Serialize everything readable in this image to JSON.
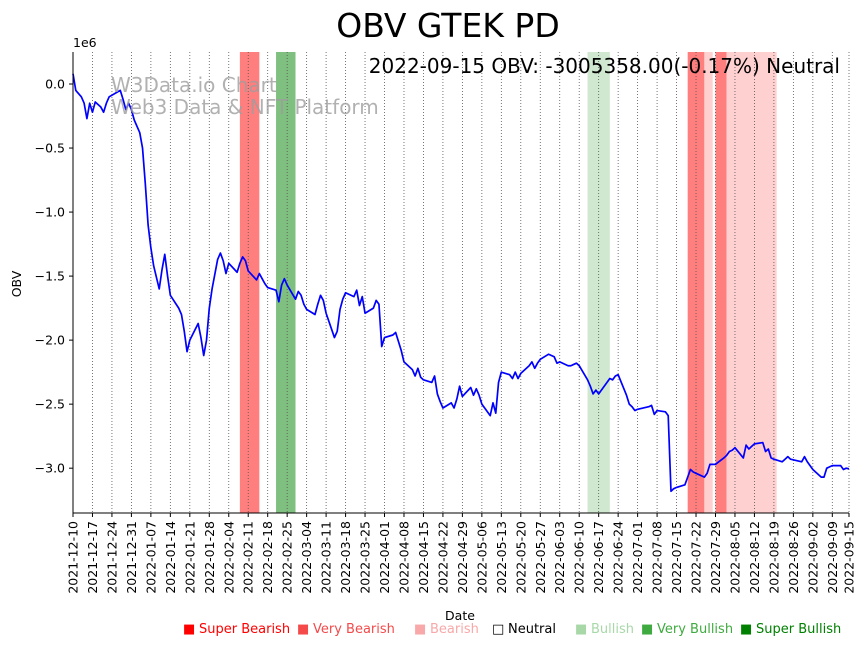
{
  "chart_data": {
    "type": "line",
    "title": "OBV GTEK PD",
    "annotation": "2022-09-15 OBV: -3005358.00(-0.17%) Neutral",
    "watermark_line1": "W3Data.io Chart",
    "watermark_line2": "Web3 Data & NFT Platform",
    "xlabel": "Date",
    "ylabel": "OBV",
    "y_multiplier_label": "1e6",
    "ylim": [
      -3.35,
      0.25
    ],
    "xlim": [
      "2021-12-10",
      "2022-09-15"
    ],
    "y_ticks": [
      {
        "value": 0.0,
        "label": "0.0"
      },
      {
        "value": -0.5,
        "label": "−0.5"
      },
      {
        "value": -1.0,
        "label": "−1.0"
      },
      {
        "value": -1.5,
        "label": "−1.5"
      },
      {
        "value": -2.0,
        "label": "−2.0"
      },
      {
        "value": -2.5,
        "label": "−2.5"
      },
      {
        "value": -3.0,
        "label": "−3.0"
      }
    ],
    "x_ticks": [
      "2021-12-10",
      "2021-12-17",
      "2021-12-24",
      "2021-12-31",
      "2022-01-07",
      "2022-01-14",
      "2022-01-21",
      "2022-01-28",
      "2022-02-04",
      "2022-02-11",
      "2022-02-18",
      "2022-02-25",
      "2022-03-04",
      "2022-03-11",
      "2022-03-18",
      "2022-03-25",
      "2022-04-01",
      "2022-04-08",
      "2022-04-15",
      "2022-04-22",
      "2022-04-29",
      "2022-05-06",
      "2022-05-13",
      "2022-05-20",
      "2022-05-27",
      "2022-06-03",
      "2022-06-10",
      "2022-06-17",
      "2022-06-24",
      "2022-07-01",
      "2022-07-08",
      "2022-07-15",
      "2022-07-22",
      "2022-07-29",
      "2022-08-05",
      "2022-08-12",
      "2022-08-19",
      "2022-08-26",
      "2022-09-02",
      "2022-09-09",
      "2022-09-15"
    ],
    "bands": [
      {
        "start": "2022-02-08",
        "end": "2022-02-15",
        "signal": "very-bearish"
      },
      {
        "start": "2022-02-21",
        "end": "2022-02-28",
        "signal": "very-bullish"
      },
      {
        "start": "2022-06-13",
        "end": "2022-06-21",
        "signal": "bullish"
      },
      {
        "start": "2022-07-19",
        "end": "2022-07-25",
        "signal": "very-bearish"
      },
      {
        "start": "2022-07-25",
        "end": "2022-07-28",
        "signal": "bearish"
      },
      {
        "start": "2022-07-29",
        "end": "2022-08-02",
        "signal": "very-bearish"
      },
      {
        "start": "2022-08-02",
        "end": "2022-08-20",
        "signal": "bearish"
      }
    ],
    "series": [
      {
        "name": "OBV",
        "color": "#0000ff",
        "points": [
          [
            "2021-12-10",
            0.08
          ],
          [
            "2021-12-11",
            -0.05
          ],
          [
            "2021-12-13",
            -0.1
          ],
          [
            "2021-12-14",
            -0.15
          ],
          [
            "2021-12-15",
            -0.27
          ],
          [
            "2021-12-16",
            -0.15
          ],
          [
            "2021-12-17",
            -0.22
          ],
          [
            "2021-12-18",
            -0.14
          ],
          [
            "2021-12-20",
            -0.18
          ],
          [
            "2021-12-21",
            -0.22
          ],
          [
            "2021-12-22",
            -0.15
          ],
          [
            "2021-12-23",
            -0.1
          ],
          [
            "2021-12-27",
            -0.05
          ],
          [
            "2021-12-28",
            -0.12
          ],
          [
            "2021-12-29",
            -0.2
          ],
          [
            "2021-12-30",
            -0.15
          ],
          [
            "2021-12-31",
            -0.2
          ],
          [
            "2022-01-01",
            -0.28
          ],
          [
            "2022-01-03",
            -0.38
          ],
          [
            "2022-01-04",
            -0.5
          ],
          [
            "2022-01-05",
            -0.78
          ],
          [
            "2022-01-06",
            -1.1
          ],
          [
            "2022-01-07",
            -1.28
          ],
          [
            "2022-01-08",
            -1.42
          ],
          [
            "2022-01-10",
            -1.6
          ],
          [
            "2022-01-11",
            -1.45
          ],
          [
            "2022-01-12",
            -1.33
          ],
          [
            "2022-01-13",
            -1.5
          ],
          [
            "2022-01-14",
            -1.65
          ],
          [
            "2022-01-17",
            -1.75
          ],
          [
            "2022-01-18",
            -1.8
          ],
          [
            "2022-01-19",
            -1.93
          ],
          [
            "2022-01-20",
            -2.09
          ],
          [
            "2022-01-21",
            -2.0
          ],
          [
            "2022-01-24",
            -1.87
          ],
          [
            "2022-01-25",
            -1.98
          ],
          [
            "2022-01-26",
            -2.12
          ],
          [
            "2022-01-27",
            -2.0
          ],
          [
            "2022-01-28",
            -1.75
          ],
          [
            "2022-01-29",
            -1.6
          ],
          [
            "2022-01-31",
            -1.37
          ],
          [
            "2022-02-01",
            -1.32
          ],
          [
            "2022-02-02",
            -1.38
          ],
          [
            "2022-02-03",
            -1.48
          ],
          [
            "2022-02-04",
            -1.4
          ],
          [
            "2022-02-07",
            -1.47
          ],
          [
            "2022-02-08",
            -1.4
          ],
          [
            "2022-02-09",
            -1.35
          ],
          [
            "2022-02-10",
            -1.38
          ],
          [
            "2022-02-11",
            -1.46
          ],
          [
            "2022-02-14",
            -1.53
          ],
          [
            "2022-02-15",
            -1.48
          ],
          [
            "2022-02-16",
            -1.52
          ],
          [
            "2022-02-17",
            -1.56
          ],
          [
            "2022-02-18",
            -1.59
          ],
          [
            "2022-02-21",
            -1.61
          ],
          [
            "2022-02-22",
            -1.7
          ],
          [
            "2022-02-23",
            -1.57
          ],
          [
            "2022-02-24",
            -1.52
          ],
          [
            "2022-02-25",
            -1.57
          ],
          [
            "2022-02-28",
            -1.68
          ],
          [
            "2022-03-01",
            -1.62
          ],
          [
            "2022-03-02",
            -1.65
          ],
          [
            "2022-03-03",
            -1.72
          ],
          [
            "2022-03-04",
            -1.76
          ],
          [
            "2022-03-07",
            -1.8
          ],
          [
            "2022-03-08",
            -1.72
          ],
          [
            "2022-03-09",
            -1.65
          ],
          [
            "2022-03-10",
            -1.69
          ],
          [
            "2022-03-11",
            -1.79
          ],
          [
            "2022-03-14",
            -1.98
          ],
          [
            "2022-03-15",
            -1.93
          ],
          [
            "2022-03-16",
            -1.76
          ],
          [
            "2022-03-17",
            -1.68
          ],
          [
            "2022-03-18",
            -1.63
          ],
          [
            "2022-03-21",
            -1.66
          ],
          [
            "2022-03-22",
            -1.61
          ],
          [
            "2022-03-23",
            -1.73
          ],
          [
            "2022-03-24",
            -1.66
          ],
          [
            "2022-03-25",
            -1.79
          ],
          [
            "2022-03-28",
            -1.75
          ],
          [
            "2022-03-29",
            -1.69
          ],
          [
            "2022-03-30",
            -1.72
          ],
          [
            "2022-03-31",
            -2.05
          ],
          [
            "2022-04-01",
            -1.98
          ],
          [
            "2022-04-04",
            -1.96
          ],
          [
            "2022-04-05",
            -1.94
          ],
          [
            "2022-04-06",
            -2.01
          ],
          [
            "2022-04-07",
            -2.08
          ],
          [
            "2022-04-08",
            -2.17
          ],
          [
            "2022-04-11",
            -2.23
          ],
          [
            "2022-04-12",
            -2.28
          ],
          [
            "2022-04-13",
            -2.22
          ],
          [
            "2022-04-14",
            -2.29
          ],
          [
            "2022-04-15",
            -2.31
          ],
          [
            "2022-04-18",
            -2.33
          ],
          [
            "2022-04-19",
            -2.28
          ],
          [
            "2022-04-20",
            -2.42
          ],
          [
            "2022-04-21",
            -2.48
          ],
          [
            "2022-04-22",
            -2.53
          ],
          [
            "2022-04-25",
            -2.49
          ],
          [
            "2022-04-26",
            -2.53
          ],
          [
            "2022-04-27",
            -2.46
          ],
          [
            "2022-04-28",
            -2.36
          ],
          [
            "2022-04-29",
            -2.44
          ],
          [
            "2022-05-02",
            -2.37
          ],
          [
            "2022-05-03",
            -2.43
          ],
          [
            "2022-05-04",
            -2.38
          ],
          [
            "2022-05-05",
            -2.43
          ],
          [
            "2022-05-06",
            -2.5
          ],
          [
            "2022-05-09",
            -2.59
          ],
          [
            "2022-05-10",
            -2.49
          ],
          [
            "2022-05-11",
            -2.57
          ],
          [
            "2022-05-12",
            -2.33
          ],
          [
            "2022-05-13",
            -2.25
          ],
          [
            "2022-05-16",
            -2.27
          ],
          [
            "2022-05-17",
            -2.3
          ],
          [
            "2022-05-18",
            -2.25
          ],
          [
            "2022-05-19",
            -2.3
          ],
          [
            "2022-05-20",
            -2.26
          ],
          [
            "2022-05-23",
            -2.2
          ],
          [
            "2022-05-24",
            -2.17
          ],
          [
            "2022-05-25",
            -2.22
          ],
          [
            "2022-05-26",
            -2.18
          ],
          [
            "2022-05-27",
            -2.15
          ],
          [
            "2022-05-30",
            -2.11
          ],
          [
            "2022-05-31",
            -2.12
          ],
          [
            "2022-06-01",
            -2.13
          ],
          [
            "2022-06-02",
            -2.18
          ],
          [
            "2022-06-03",
            -2.17
          ],
          [
            "2022-06-06",
            -2.2
          ],
          [
            "2022-06-07",
            -2.2
          ],
          [
            "2022-06-08",
            -2.19
          ],
          [
            "2022-06-09",
            -2.18
          ],
          [
            "2022-06-10",
            -2.2
          ],
          [
            "2022-06-13",
            -2.31
          ],
          [
            "2022-06-14",
            -2.36
          ],
          [
            "2022-06-15",
            -2.42
          ],
          [
            "2022-06-16",
            -2.39
          ],
          [
            "2022-06-17",
            -2.42
          ],
          [
            "2022-06-20",
            -2.33
          ],
          [
            "2022-06-21",
            -2.3
          ],
          [
            "2022-06-22",
            -2.31
          ],
          [
            "2022-06-23",
            -2.28
          ],
          [
            "2022-06-24",
            -2.27
          ],
          [
            "2022-06-27",
            -2.43
          ],
          [
            "2022-06-28",
            -2.5
          ],
          [
            "2022-06-29",
            -2.52
          ],
          [
            "2022-06-30",
            -2.55
          ],
          [
            "2022-07-01",
            -2.54
          ],
          [
            "2022-07-05",
            -2.52
          ],
          [
            "2022-07-06",
            -2.51
          ],
          [
            "2022-07-07",
            -2.58
          ],
          [
            "2022-07-08",
            -2.55
          ],
          [
            "2022-07-11",
            -2.56
          ],
          [
            "2022-07-12",
            -2.59
          ],
          [
            "2022-07-13",
            -3.18
          ],
          [
            "2022-07-14",
            -3.16
          ],
          [
            "2022-07-15",
            -3.15
          ],
          [
            "2022-07-18",
            -3.13
          ],
          [
            "2022-07-19",
            -3.07
          ],
          [
            "2022-07-20",
            -3.01
          ],
          [
            "2022-07-21",
            -3.03
          ],
          [
            "2022-07-22",
            -3.04
          ],
          [
            "2022-07-25",
            -3.07
          ],
          [
            "2022-07-26",
            -3.04
          ],
          [
            "2022-07-27",
            -2.97
          ],
          [
            "2022-07-28",
            -2.97
          ],
          [
            "2022-07-29",
            -2.97
          ],
          [
            "2022-08-01",
            -2.92
          ],
          [
            "2022-08-02",
            -2.9
          ],
          [
            "2022-08-03",
            -2.87
          ],
          [
            "2022-08-04",
            -2.86
          ],
          [
            "2022-08-05",
            -2.84
          ],
          [
            "2022-08-08",
            -2.92
          ],
          [
            "2022-08-09",
            -2.82
          ],
          [
            "2022-08-10",
            -2.85
          ],
          [
            "2022-08-11",
            -2.83
          ],
          [
            "2022-08-12",
            -2.81
          ],
          [
            "2022-08-15",
            -2.8
          ],
          [
            "2022-08-16",
            -2.87
          ],
          [
            "2022-08-17",
            -2.85
          ],
          [
            "2022-08-18",
            -2.92
          ],
          [
            "2022-08-19",
            -2.93
          ],
          [
            "2022-08-22",
            -2.95
          ],
          [
            "2022-08-23",
            -2.93
          ],
          [
            "2022-08-24",
            -2.91
          ],
          [
            "2022-08-25",
            -2.93
          ],
          [
            "2022-08-29",
            -2.95
          ],
          [
            "2022-08-30",
            -2.91
          ],
          [
            "2022-08-31",
            -2.95
          ],
          [
            "2022-09-01",
            -2.98
          ],
          [
            "2022-09-02",
            -3.01
          ],
          [
            "2022-09-05",
            -3.07
          ],
          [
            "2022-09-06",
            -3.07
          ],
          [
            "2022-09-07",
            -3.0
          ],
          [
            "2022-09-08",
            -2.99
          ],
          [
            "2022-09-09",
            -2.98
          ],
          [
            "2022-09-12",
            -2.98
          ],
          [
            "2022-09-13",
            -3.01
          ],
          [
            "2022-09-14",
            -3.0
          ],
          [
            "2022-09-15",
            -3.005358
          ]
        ]
      }
    ],
    "legend": [
      {
        "label": "Super Bearish",
        "color": "#ff0000",
        "marker": "■",
        "text_color": "#ff0000"
      },
      {
        "label": "Very Bearish",
        "color": "#f44a4a",
        "marker": "■",
        "text_color": "#f44a4a"
      },
      {
        "label": "Bearish",
        "color": "#f8a8a8",
        "marker": "■",
        "text_color": "#f8a8a8"
      },
      {
        "label": "Neutral",
        "color": "#000000",
        "marker": "□",
        "text_color": "#000000"
      },
      {
        "label": "Bullish",
        "color": "#a8d8a8",
        "marker": "■",
        "text_color": "#a8d8a8"
      },
      {
        "label": "Very Bullish",
        "color": "#3faa3f",
        "marker": "■",
        "text_color": "#3faa3f"
      },
      {
        "label": "Super Bullish",
        "color": "#008000",
        "marker": "■",
        "text_color": "#008000"
      }
    ],
    "band_colors": {
      "very-bearish": "#ff7f7f",
      "bearish": "#ffd0d0",
      "bullish": "#cfe8cf",
      "very-bullish": "#7fbf7f"
    }
  }
}
